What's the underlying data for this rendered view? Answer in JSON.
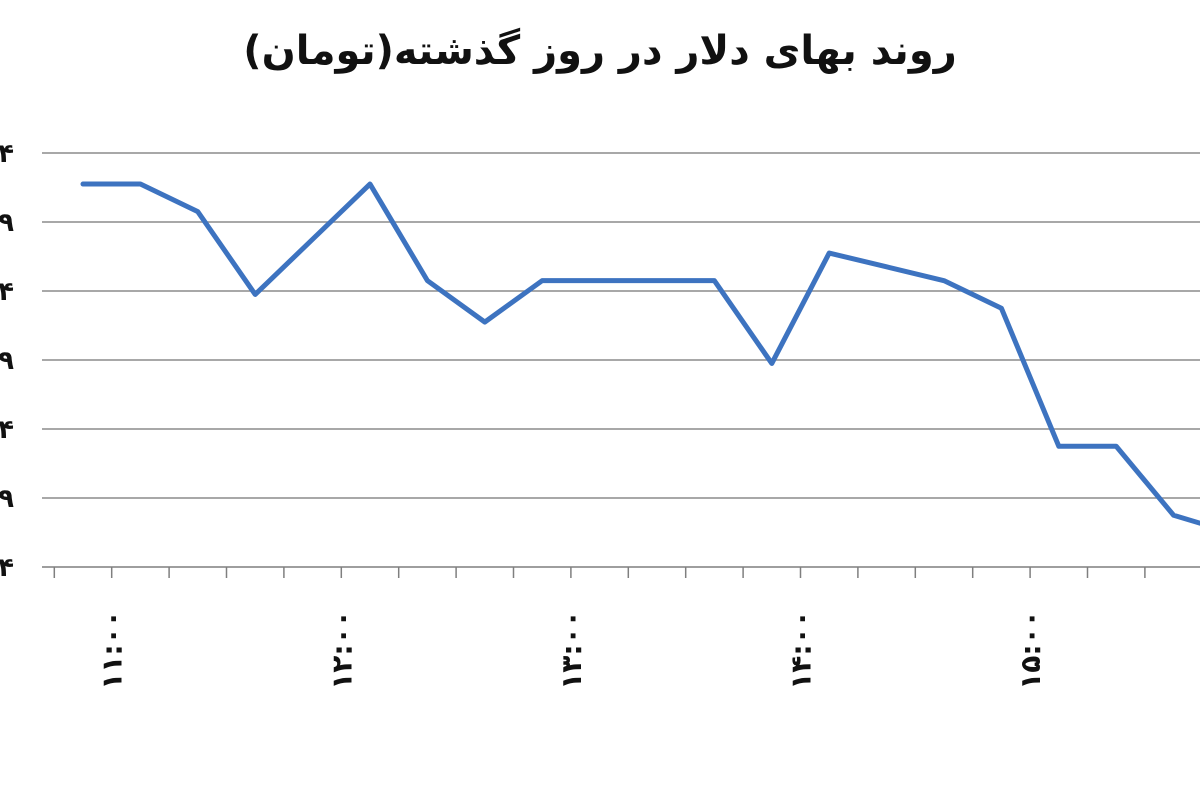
{
  "chart_data": {
    "type": "line",
    "title": "روند بهای دلار در روز گذشته(تومان)",
    "xlabel": "",
    "ylabel": "",
    "y_tick_labels": [
      "۴",
      "۹",
      "۴",
      "۹",
      "۴",
      "۹",
      "۴"
    ],
    "x_tick_labels": [
      "۱۱:۰۰",
      "۱۲:۰۰",
      "۱۳:۰۰",
      "۱۴:۰۰",
      "۱۵:۰۰"
    ],
    "x_tick_positions": [
      0.5,
      4.5,
      8.5,
      12.5,
      16.5
    ],
    "x_minor_tick_count": 20,
    "y_range": [
      0,
      6
    ],
    "grid": true,
    "legend": "none",
    "line_color": "#3d73c0",
    "series": [
      {
        "values": [
          5.55,
          5.55,
          5.15,
          3.95,
          4.75,
          5.55,
          4.15,
          3.55,
          4.15,
          4.15,
          4.15,
          4.15,
          2.95,
          4.55,
          4.35,
          4.15,
          3.75,
          1.75,
          1.75,
          0.75,
          0.5
        ]
      }
    ]
  }
}
